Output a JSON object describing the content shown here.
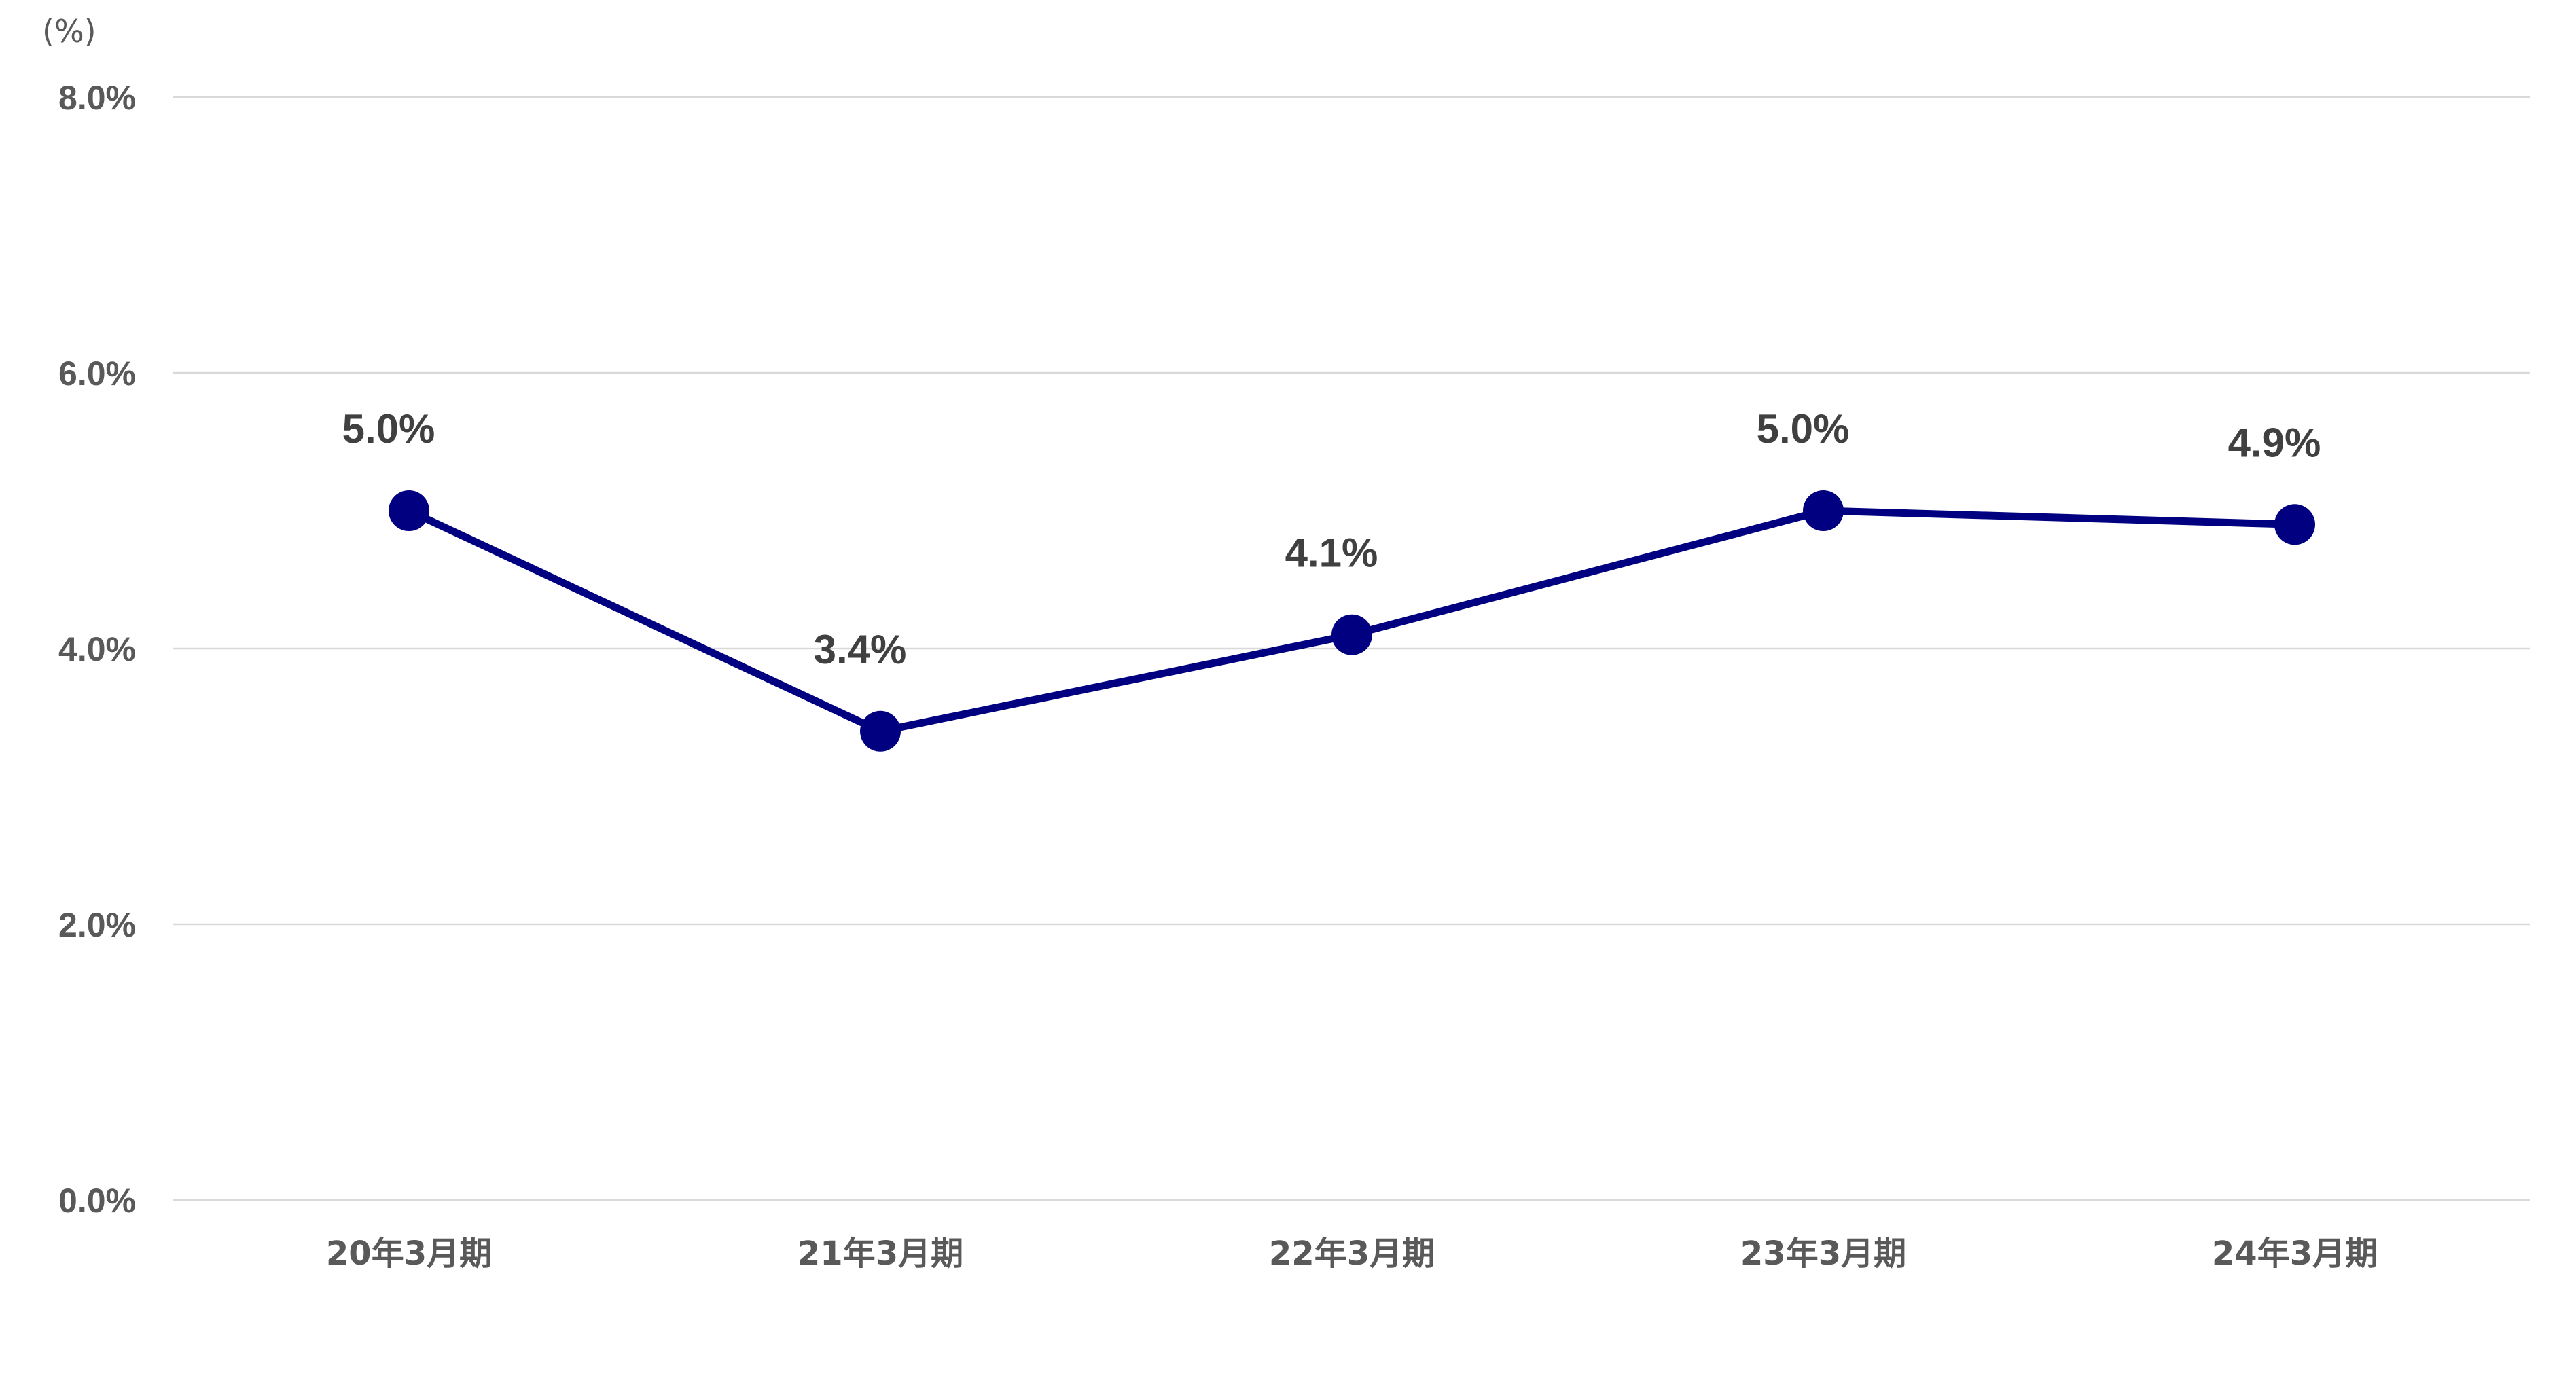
{
  "chart_data": {
    "type": "line",
    "unit_label": "(%)",
    "categories": [
      "20年3月期",
      "21年3月期",
      "22年3月期",
      "23年3月期",
      "24年3月期"
    ],
    "series": [
      {
        "values": [
          5.0,
          3.4,
          4.1,
          5.0,
          4.9
        ],
        "labels": [
          "5.0%",
          "3.4%",
          "4.1%",
          "5.0%",
          "4.9%"
        ]
      }
    ],
    "y_ticks": [
      {
        "value": 0,
        "label": "0.0%"
      },
      {
        "value": 2,
        "label": "2.0%"
      },
      {
        "value": 4,
        "label": "4.0%"
      },
      {
        "value": 6,
        "label": "6.0%"
      },
      {
        "value": 8,
        "label": "8.0%"
      }
    ],
    "ylim": [
      0,
      8
    ],
    "grid": true,
    "legend": "none",
    "colors": {
      "series": "#000080",
      "grid": "#d9d9d9",
      "axis_text": "#595959",
      "data_label": "#404040"
    }
  }
}
